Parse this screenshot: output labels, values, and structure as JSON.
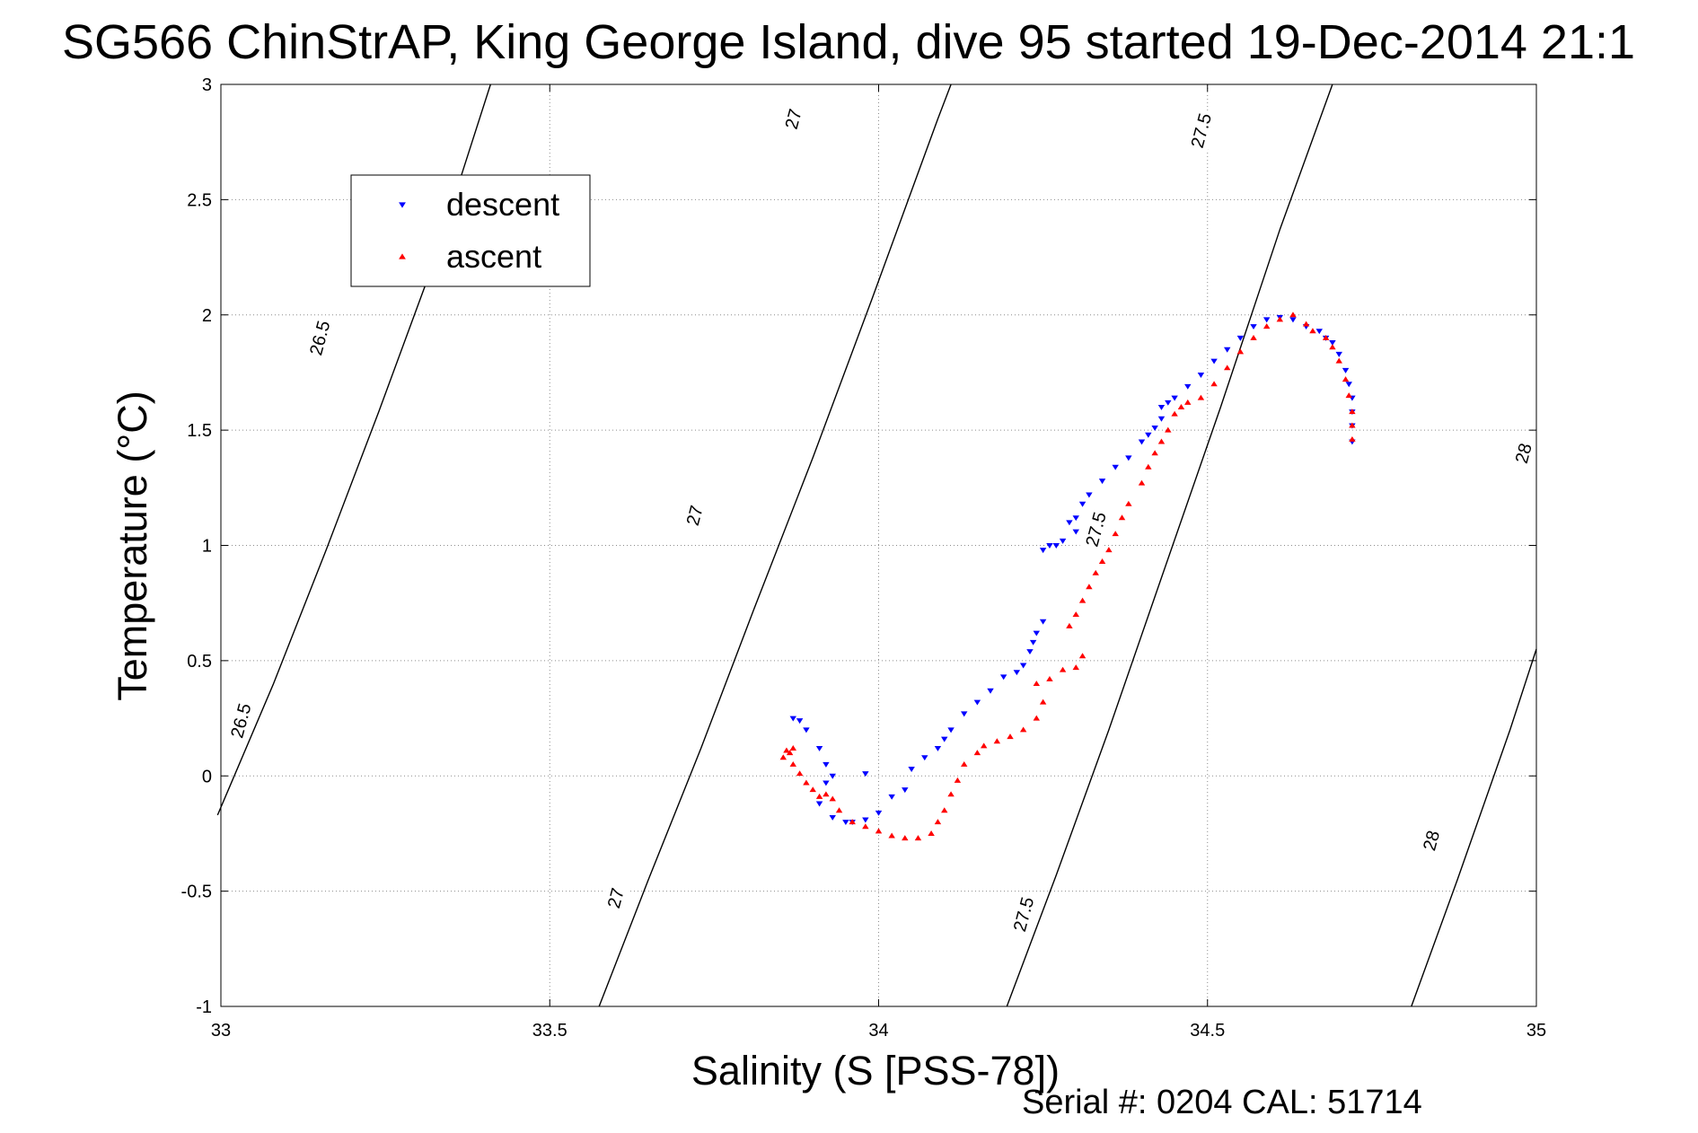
{
  "chart_data": {
    "type": "scatter",
    "title": "SG566 ChinStrAP, King George Island, dive 95 started 19-Dec-2014 21:1",
    "xlabel": "Salinity (S [PSS-78])",
    "ylabel": "Temperature (°C)",
    "footer": "Serial #: 0204  CAL: 51714",
    "xlim": [
      33,
      35
    ],
    "ylim": [
      -1,
      3
    ],
    "xticks": [
      33,
      33.5,
      34,
      34.5,
      35
    ],
    "xtick_labels": [
      "33",
      "33.5",
      "34",
      "34.5",
      "35"
    ],
    "yticks": [
      -1,
      -0.5,
      0,
      0.5,
      1,
      1.5,
      2,
      2.5,
      3
    ],
    "ytick_labels": [
      "-1",
      "-0.5",
      "0",
      "0.5",
      "1",
      "1.5",
      "2",
      "2.5",
      "3"
    ],
    "grid": true,
    "legend_position": "top-left",
    "density_contours": [
      {
        "level": "26.5",
        "points": [
          [
            32.995,
            -0.17
          ],
          [
            33.08,
            0.4
          ],
          [
            33.16,
            0.98
          ],
          [
            33.24,
            1.58
          ],
          [
            33.32,
            2.2
          ],
          [
            33.41,
            3.0
          ]
        ]
      },
      {
        "level": "27",
        "points": [
          [
            33.575,
            -1.0
          ],
          [
            33.65,
            -0.45
          ],
          [
            33.73,
            0.12
          ],
          [
            33.81,
            0.72
          ],
          [
            33.9,
            1.38
          ],
          [
            33.99,
            2.07
          ],
          [
            34.09,
            2.85
          ],
          [
            34.11,
            3.0
          ]
        ]
      },
      {
        "level": "27.5",
        "points": [
          [
            34.195,
            -1.0
          ],
          [
            34.27,
            -0.43
          ],
          [
            34.35,
            0.2
          ],
          [
            34.43,
            0.86
          ],
          [
            34.52,
            1.6
          ],
          [
            34.61,
            2.37
          ],
          [
            34.69,
            3.0
          ]
        ]
      },
      {
        "level": "28",
        "points": [
          [
            34.81,
            -1.0
          ],
          [
            34.88,
            -0.45
          ],
          [
            34.96,
            0.2
          ],
          [
            35.0,
            0.55
          ]
        ]
      }
    ],
    "contour_labels": [
      {
        "text": "26.5",
        "x": 33.15,
        "y": 1.9
      },
      {
        "text": "26.5",
        "x": 33.03,
        "y": 0.24
      },
      {
        "text": "27",
        "x": 33.87,
        "y": 2.85
      },
      {
        "text": "27",
        "x": 33.72,
        "y": 1.13
      },
      {
        "text": "27",
        "x": 33.6,
        "y": -0.53
      },
      {
        "text": "27.5",
        "x": 34.49,
        "y": 2.8
      },
      {
        "text": "27.5",
        "x": 34.33,
        "y": 1.07
      },
      {
        "text": "27.5",
        "x": 34.22,
        "y": -0.6
      },
      {
        "text": "28",
        "x": 34.98,
        "y": 1.4
      },
      {
        "text": "28",
        "x": 34.84,
        "y": -0.28
      }
    ],
    "series": [
      {
        "name": "descent",
        "color": "#0000ff",
        "marker": "triangle-down",
        "points": [
          [
            34.72,
            1.45
          ],
          [
            34.72,
            1.52
          ],
          [
            34.72,
            1.58
          ],
          [
            34.72,
            1.64
          ],
          [
            34.715,
            1.7
          ],
          [
            34.71,
            1.76
          ],
          [
            34.7,
            1.83
          ],
          [
            34.69,
            1.88
          ],
          [
            34.68,
            1.9
          ],
          [
            34.67,
            1.93
          ],
          [
            34.65,
            1.95
          ],
          [
            34.63,
            1.98
          ],
          [
            34.61,
            1.99
          ],
          [
            34.59,
            1.98
          ],
          [
            34.57,
            1.95
          ],
          [
            34.55,
            1.9
          ],
          [
            34.53,
            1.85
          ],
          [
            34.51,
            1.8
          ],
          [
            34.49,
            1.74
          ],
          [
            34.47,
            1.69
          ],
          [
            34.45,
            1.64
          ],
          [
            34.44,
            1.62
          ],
          [
            34.43,
            1.6
          ],
          [
            34.43,
            1.55
          ],
          [
            34.42,
            1.51
          ],
          [
            34.41,
            1.48
          ],
          [
            34.4,
            1.45
          ],
          [
            34.38,
            1.38
          ],
          [
            34.36,
            1.34
          ],
          [
            34.34,
            1.28
          ],
          [
            34.32,
            1.22
          ],
          [
            34.31,
            1.18
          ],
          [
            34.3,
            1.12
          ],
          [
            34.29,
            1.1
          ],
          [
            34.3,
            1.06
          ],
          [
            34.28,
            1.02
          ],
          [
            34.27,
            1.0
          ],
          [
            34.26,
            1.0
          ],
          [
            34.25,
            0.98
          ],
          [
            34.25,
            0.67
          ],
          [
            34.24,
            0.62
          ],
          [
            34.235,
            0.58
          ],
          [
            34.23,
            0.54
          ],
          [
            34.22,
            0.48
          ],
          [
            34.21,
            0.45
          ],
          [
            34.19,
            0.43
          ],
          [
            34.17,
            0.37
          ],
          [
            34.15,
            0.32
          ],
          [
            34.13,
            0.27
          ],
          [
            34.11,
            0.2
          ],
          [
            34.1,
            0.16
          ],
          [
            34.09,
            0.12
          ],
          [
            34.07,
            0.08
          ],
          [
            34.05,
            0.03
          ],
          [
            34.04,
            -0.06
          ],
          [
            34.02,
            -0.09
          ],
          [
            34.0,
            -0.16
          ],
          [
            33.98,
            -0.19
          ],
          [
            33.96,
            -0.2
          ],
          [
            33.95,
            -0.2
          ],
          [
            33.93,
            -0.18
          ],
          [
            33.91,
            -0.12
          ],
          [
            33.92,
            -0.03
          ],
          [
            33.93,
            0.0
          ],
          [
            33.92,
            0.05
          ],
          [
            33.91,
            0.12
          ],
          [
            33.89,
            0.2
          ],
          [
            33.88,
            0.24
          ],
          [
            33.87,
            0.25
          ],
          [
            33.98,
            0.01
          ]
        ]
      },
      {
        "name": "ascent",
        "color": "#ff0000",
        "marker": "triangle-up",
        "points": [
          [
            34.72,
            1.46
          ],
          [
            34.72,
            1.52
          ],
          [
            34.72,
            1.58
          ],
          [
            34.715,
            1.65
          ],
          [
            34.71,
            1.72
          ],
          [
            34.7,
            1.8
          ],
          [
            34.69,
            1.86
          ],
          [
            34.68,
            1.9
          ],
          [
            34.66,
            1.93
          ],
          [
            34.65,
            1.96
          ],
          [
            34.63,
            2.0
          ],
          [
            34.61,
            1.98
          ],
          [
            34.59,
            1.95
          ],
          [
            34.57,
            1.9
          ],
          [
            34.55,
            1.84
          ],
          [
            34.53,
            1.77
          ],
          [
            34.51,
            1.7
          ],
          [
            34.49,
            1.64
          ],
          [
            34.47,
            1.62
          ],
          [
            34.46,
            1.6
          ],
          [
            34.45,
            1.57
          ],
          [
            34.44,
            1.5
          ],
          [
            34.43,
            1.45
          ],
          [
            34.42,
            1.4
          ],
          [
            34.41,
            1.34
          ],
          [
            34.4,
            1.27
          ],
          [
            34.38,
            1.18
          ],
          [
            34.37,
            1.12
          ],
          [
            34.36,
            1.05
          ],
          [
            34.35,
            0.98
          ],
          [
            34.34,
            0.93
          ],
          [
            34.33,
            0.88
          ],
          [
            34.32,
            0.82
          ],
          [
            34.31,
            0.76
          ],
          [
            34.3,
            0.7
          ],
          [
            34.29,
            0.65
          ],
          [
            34.31,
            0.52
          ],
          [
            34.3,
            0.47
          ],
          [
            34.28,
            0.46
          ],
          [
            34.26,
            0.42
          ],
          [
            34.24,
            0.4
          ],
          [
            34.25,
            0.32
          ],
          [
            34.24,
            0.25
          ],
          [
            34.22,
            0.2
          ],
          [
            34.2,
            0.17
          ],
          [
            34.18,
            0.15
          ],
          [
            34.16,
            0.13
          ],
          [
            34.15,
            0.1
          ],
          [
            34.13,
            0.05
          ],
          [
            34.12,
            -0.02
          ],
          [
            34.11,
            -0.08
          ],
          [
            34.1,
            -0.15
          ],
          [
            34.09,
            -0.2
          ],
          [
            34.08,
            -0.25
          ],
          [
            34.06,
            -0.27
          ],
          [
            34.04,
            -0.27
          ],
          [
            34.02,
            -0.26
          ],
          [
            34.0,
            -0.24
          ],
          [
            33.98,
            -0.22
          ],
          [
            33.96,
            -0.2
          ],
          [
            33.94,
            -0.15
          ],
          [
            33.93,
            -0.1
          ],
          [
            33.92,
            -0.08
          ],
          [
            33.91,
            -0.09
          ],
          [
            33.9,
            -0.06
          ],
          [
            33.89,
            -0.03
          ],
          [
            33.88,
            0.01
          ],
          [
            33.87,
            0.05
          ],
          [
            33.865,
            0.1
          ],
          [
            33.87,
            0.12
          ],
          [
            33.86,
            0.11
          ],
          [
            33.855,
            0.08
          ]
        ]
      }
    ]
  }
}
